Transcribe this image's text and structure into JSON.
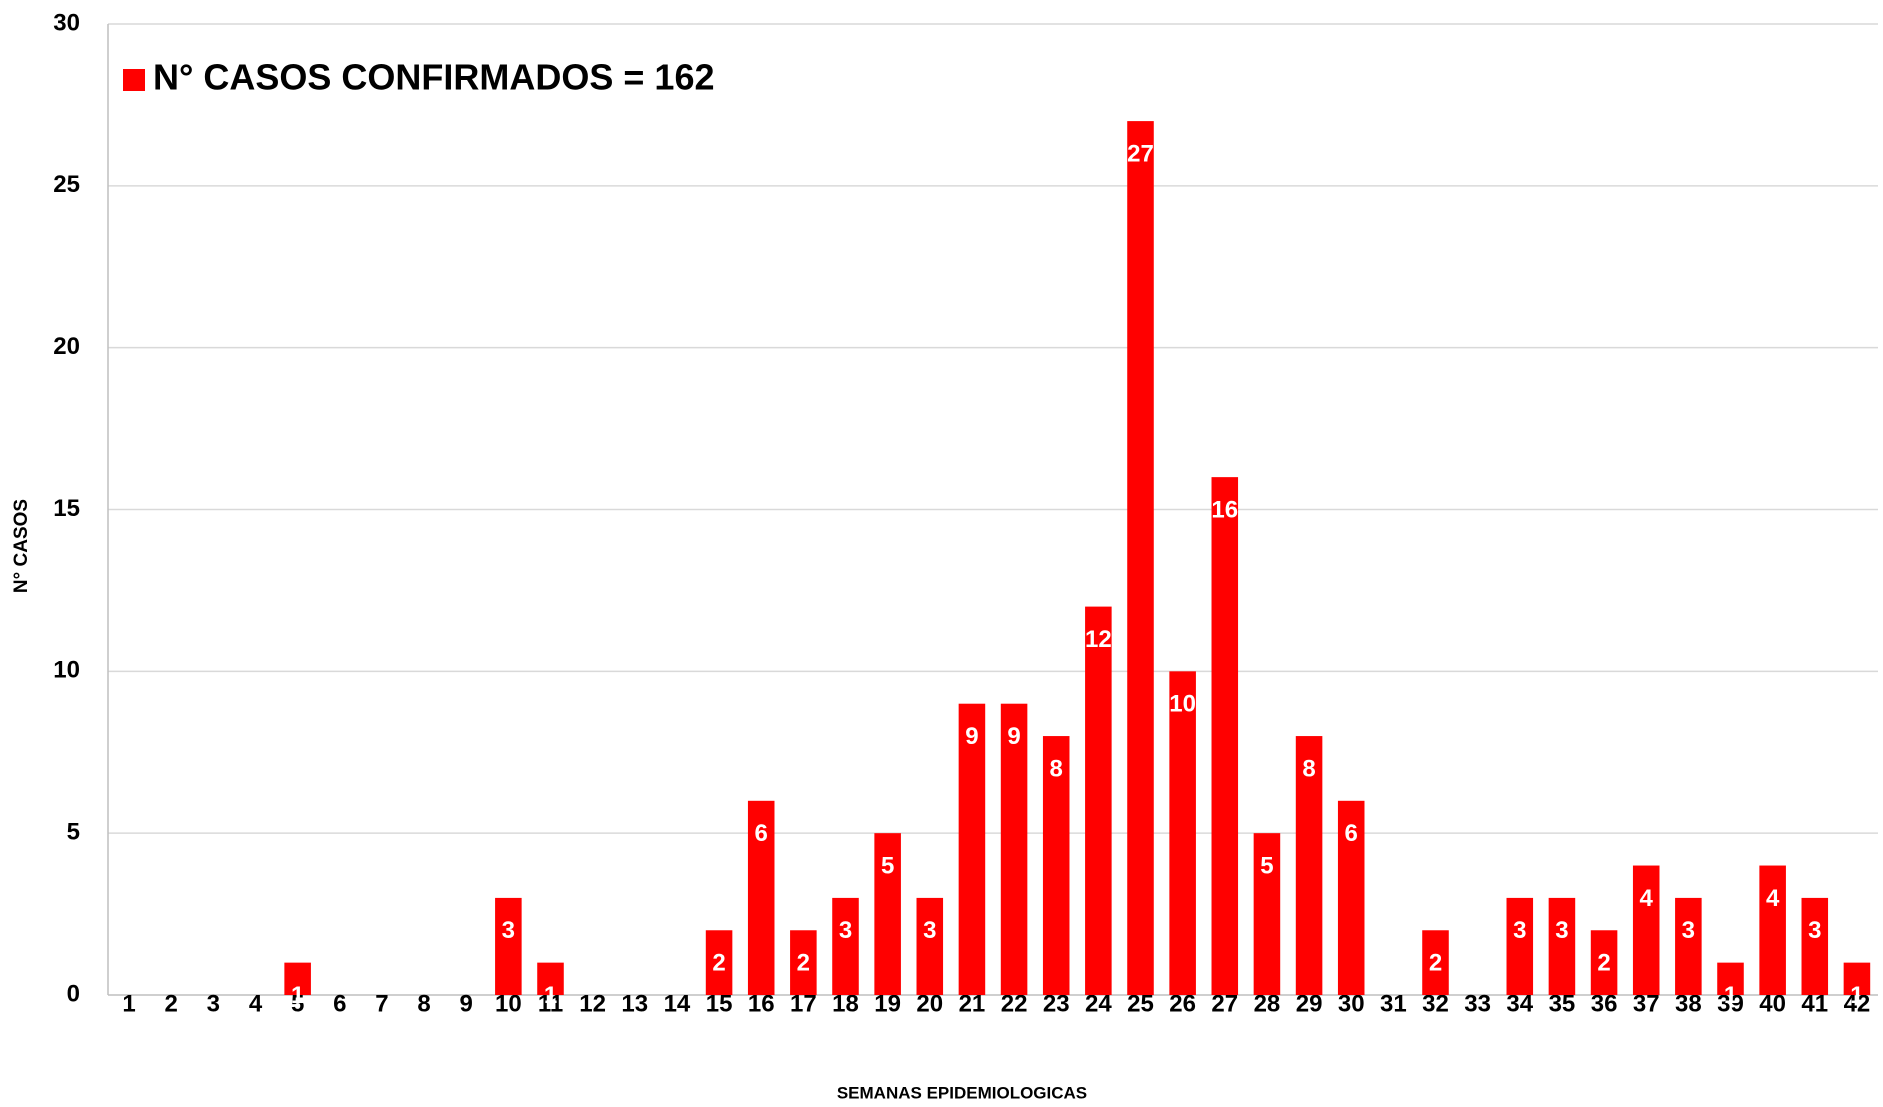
{
  "chart_data": {
    "type": "bar",
    "x_label": "SEMANAS EPIDEMIOLOGICAS",
    "y_label": "N° CASOS",
    "categories": [
      "1",
      "2",
      "3",
      "4",
      "5",
      "6",
      "7",
      "8",
      "9",
      "10",
      "11",
      "12",
      "13",
      "14",
      "15",
      "16",
      "17",
      "18",
      "19",
      "20",
      "21",
      "22",
      "23",
      "24",
      "25",
      "26",
      "27",
      "28",
      "29",
      "30",
      "31",
      "32",
      "33",
      "34",
      "35",
      "36",
      "37",
      "38",
      "39",
      "40",
      "41",
      "42"
    ],
    "series": [
      {
        "name": "N° CASOS CONFIRMADOS = 162",
        "color": "#ff0000",
        "values": [
          0,
          0,
          0,
          0,
          1,
          0,
          0,
          0,
          0,
          3,
          1,
          0,
          0,
          0,
          2,
          6,
          2,
          3,
          5,
          3,
          9,
          9,
          8,
          12,
          27,
          10,
          16,
          5,
          8,
          6,
          0,
          2,
          0,
          3,
          3,
          2,
          4,
          3,
          1,
          4,
          3,
          1
        ]
      }
    ],
    "ylim": [
      0,
      30
    ],
    "yticks": [
      0,
      5,
      10,
      15,
      20,
      25,
      30
    ],
    "grid": true,
    "legend": "top-left"
  }
}
